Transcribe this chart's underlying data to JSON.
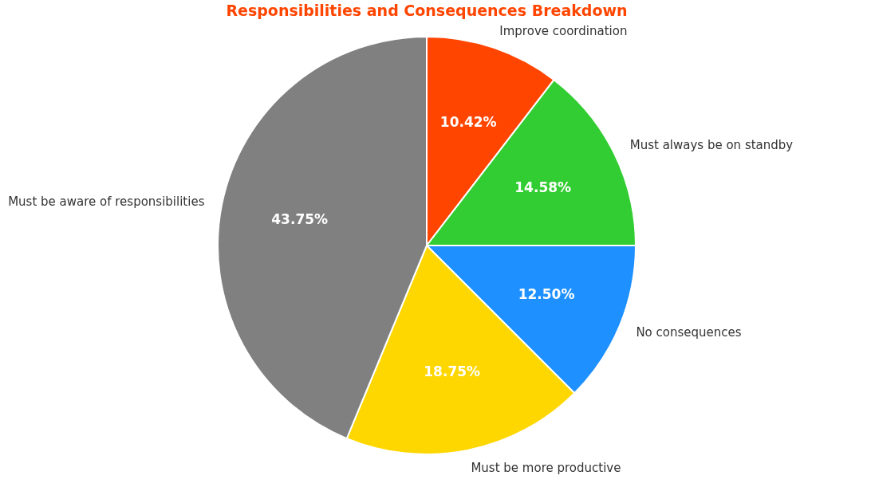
{
  "chart_data": {
    "type": "pie",
    "title": "Responsibilities and Consequences Breakdown",
    "categories": [
      "Improve coordination",
      "Must always be on standby",
      "No consequences",
      "Must be more productive",
      "Must be aware of responsibilities"
    ],
    "values": [
      10.42,
      14.58,
      12.5,
      18.75,
      43.75
    ],
    "colors": [
      "#ff4500",
      "#32cd32",
      "#1e90ff",
      "#ffd700",
      "#808080"
    ],
    "value_labels": [
      "10.42%",
      "14.58%",
      "12.50%",
      "18.75%",
      "43.75%"
    ],
    "legend": false
  }
}
